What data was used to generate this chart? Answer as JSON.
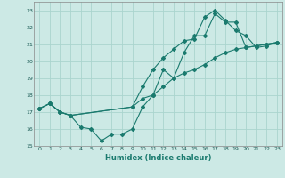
{
  "title": "",
  "xlabel": "Humidex (Indice chaleur)",
  "xlim": [
    -0.5,
    23.5
  ],
  "ylim": [
    15,
    23.5
  ],
  "yticks": [
    15,
    16,
    17,
    18,
    19,
    20,
    21,
    22,
    23
  ],
  "xticks": [
    0,
    1,
    2,
    3,
    4,
    5,
    6,
    7,
    8,
    9,
    10,
    11,
    12,
    13,
    14,
    15,
    16,
    17,
    18,
    19,
    20,
    21,
    22,
    23
  ],
  "bg_color": "#cce9e5",
  "grid_color": "#aad4ce",
  "line_color": "#1a7a6e",
  "line1_x": [
    0,
    1,
    2,
    3,
    4,
    5,
    6,
    7,
    8,
    9,
    10,
    11,
    12,
    13,
    14,
    15,
    16,
    17,
    18,
    19,
    20,
    21,
    22,
    23
  ],
  "line1_y": [
    17.2,
    17.5,
    17.0,
    16.8,
    16.1,
    16.0,
    15.3,
    15.7,
    15.7,
    16.0,
    17.3,
    18.0,
    19.5,
    19.0,
    20.5,
    21.5,
    21.5,
    22.8,
    22.3,
    22.3,
    20.8,
    20.9,
    21.0,
    21.1
  ],
  "line2_x": [
    0,
    1,
    2,
    3,
    9,
    10,
    11,
    12,
    13,
    14,
    15,
    16,
    17,
    18,
    19,
    20,
    21,
    22,
    23
  ],
  "line2_y": [
    17.2,
    17.5,
    17.0,
    16.8,
    17.3,
    17.8,
    18.0,
    18.5,
    19.0,
    19.3,
    19.5,
    19.8,
    20.2,
    20.5,
    20.7,
    20.8,
    20.9,
    21.0,
    21.1
  ],
  "line3_x": [
    0,
    1,
    2,
    3,
    9,
    10,
    11,
    12,
    13,
    14,
    15,
    16,
    17,
    18,
    19,
    20,
    21,
    22,
    23
  ],
  "line3_y": [
    17.2,
    17.5,
    17.0,
    16.8,
    17.3,
    18.5,
    19.5,
    20.2,
    20.7,
    21.2,
    21.3,
    22.6,
    23.0,
    22.4,
    21.8,
    21.5,
    20.8,
    20.9,
    21.1
  ]
}
